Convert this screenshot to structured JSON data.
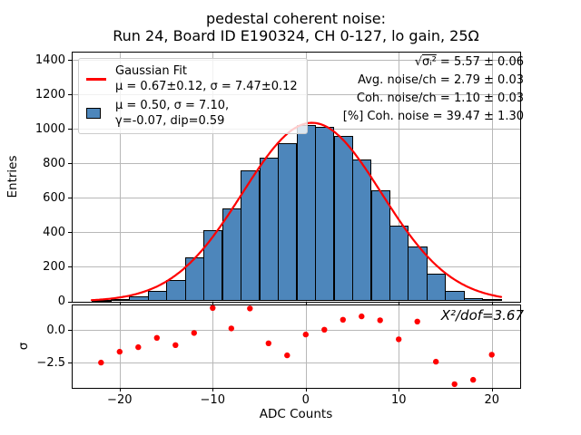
{
  "title": {
    "line1": "pedestal coherent noise:",
    "line2": "Run 24, Board ID E190324, CH 0-127, lo gain, 25Ω"
  },
  "axis_labels": {
    "main_y": "Entries",
    "residual_y": "σ",
    "x": "ADC Counts"
  },
  "legend": {
    "fit_label": "Gaussian Fit",
    "fit_params": "μ = 0.67±0.12, σ = 7.47±0.12",
    "hist_line1": "μ = 0.50, σ = 7.10,",
    "hist_line2": "γ=-0.07, dip=0.59"
  },
  "stats": {
    "line1_sqrt": "√",
    "line1_radicand": "σᵢ²",
    "line1_rest": " = 5.57 ± 0.06",
    "line2": "Avg. noise/ch = 2.79 ± 0.03",
    "line3": "Coh. noise/ch = 1.10 ± 0.03",
    "line4": "[%] Coh. noise = 39.47 ± 1.30"
  },
  "residual_annotation": "X²/dof=3.67",
  "colors": {
    "bar_fill": "#4d86bb",
    "bar_edge": "#000000",
    "fit_line": "#ff0000",
    "residual_dot": "#ff0000",
    "grid": "#b8b8b8",
    "legend_border": "#cccccc",
    "text": "#000000"
  },
  "chart_data": [
    {
      "type": "bar",
      "subplot": "main",
      "title": "pedestal coherent noise: Run 24, Board ID E190324, CH 0-127, lo gain, 25Ω",
      "xlabel": "",
      "ylabel": "Entries",
      "grid": true,
      "legend_position": "upper left",
      "bin_edges": [
        -23,
        -21,
        -19,
        -17,
        -15,
        -13,
        -11,
        -9,
        -7,
        -5,
        -3,
        -1,
        1,
        3,
        5,
        7,
        9,
        11,
        13,
        15,
        17,
        19,
        21
      ],
      "counts": [
        8,
        15,
        28,
        60,
        122,
        255,
        415,
        540,
        757,
        835,
        915,
        1022,
        1012,
        960,
        820,
        643,
        441,
        316,
        158,
        60,
        18,
        15
      ],
      "xlim": [
        -25.1,
        23.05
      ],
      "ylim": [
        0,
        1445
      ],
      "yticks": [
        0,
        200,
        400,
        600,
        800,
        1000,
        1200,
        1400
      ],
      "ytick_labels": [
        "0",
        "200",
        "400",
        "600",
        "800",
        "1000",
        "1200",
        "1400"
      ],
      "xticks": [
        -20,
        -10,
        0,
        10,
        20
      ],
      "xtick_labels": [
        "−20",
        "−10",
        "0",
        "10",
        "20"
      ],
      "fit": {
        "shape": "gaussian",
        "label": "Gaussian Fit",
        "amplitude": 1035,
        "mu": 0.67,
        "sigma": 7.47,
        "x_range": [
          -23,
          21
        ]
      }
    },
    {
      "type": "scatter",
      "subplot": "residual",
      "xlabel": "ADC Counts",
      "ylabel": "σ",
      "grid": true,
      "annotation": "X²/dof=3.67",
      "x": [
        -22,
        -20,
        -18,
        -16,
        -14,
        -12,
        -10,
        -8,
        -6,
        -4,
        -2,
        0,
        2,
        4,
        6,
        8,
        10,
        12,
        14,
        16,
        18,
        20
      ],
      "y": [
        -2.5,
        -1.66,
        -1.31,
        -0.59,
        -1.15,
        -0.21,
        1.72,
        0.14,
        1.68,
        -1.01,
        -1.94,
        -0.33,
        0.04,
        0.81,
        1.07,
        0.77,
        -0.7,
        0.67,
        -2.43,
        -4.16,
        -3.83,
        -1.89
      ],
      "xlim": [
        -25.1,
        23.05
      ],
      "ylim": [
        -4.45,
        1.95
      ],
      "yticks": [
        0,
        -2.5
      ],
      "ytick_labels": [
        "0.0",
        "−2.5"
      ],
      "xticks": [
        -20,
        -10,
        0,
        10,
        20
      ],
      "xtick_labels": [
        "−20",
        "−10",
        "0",
        "10",
        "20"
      ]
    }
  ]
}
